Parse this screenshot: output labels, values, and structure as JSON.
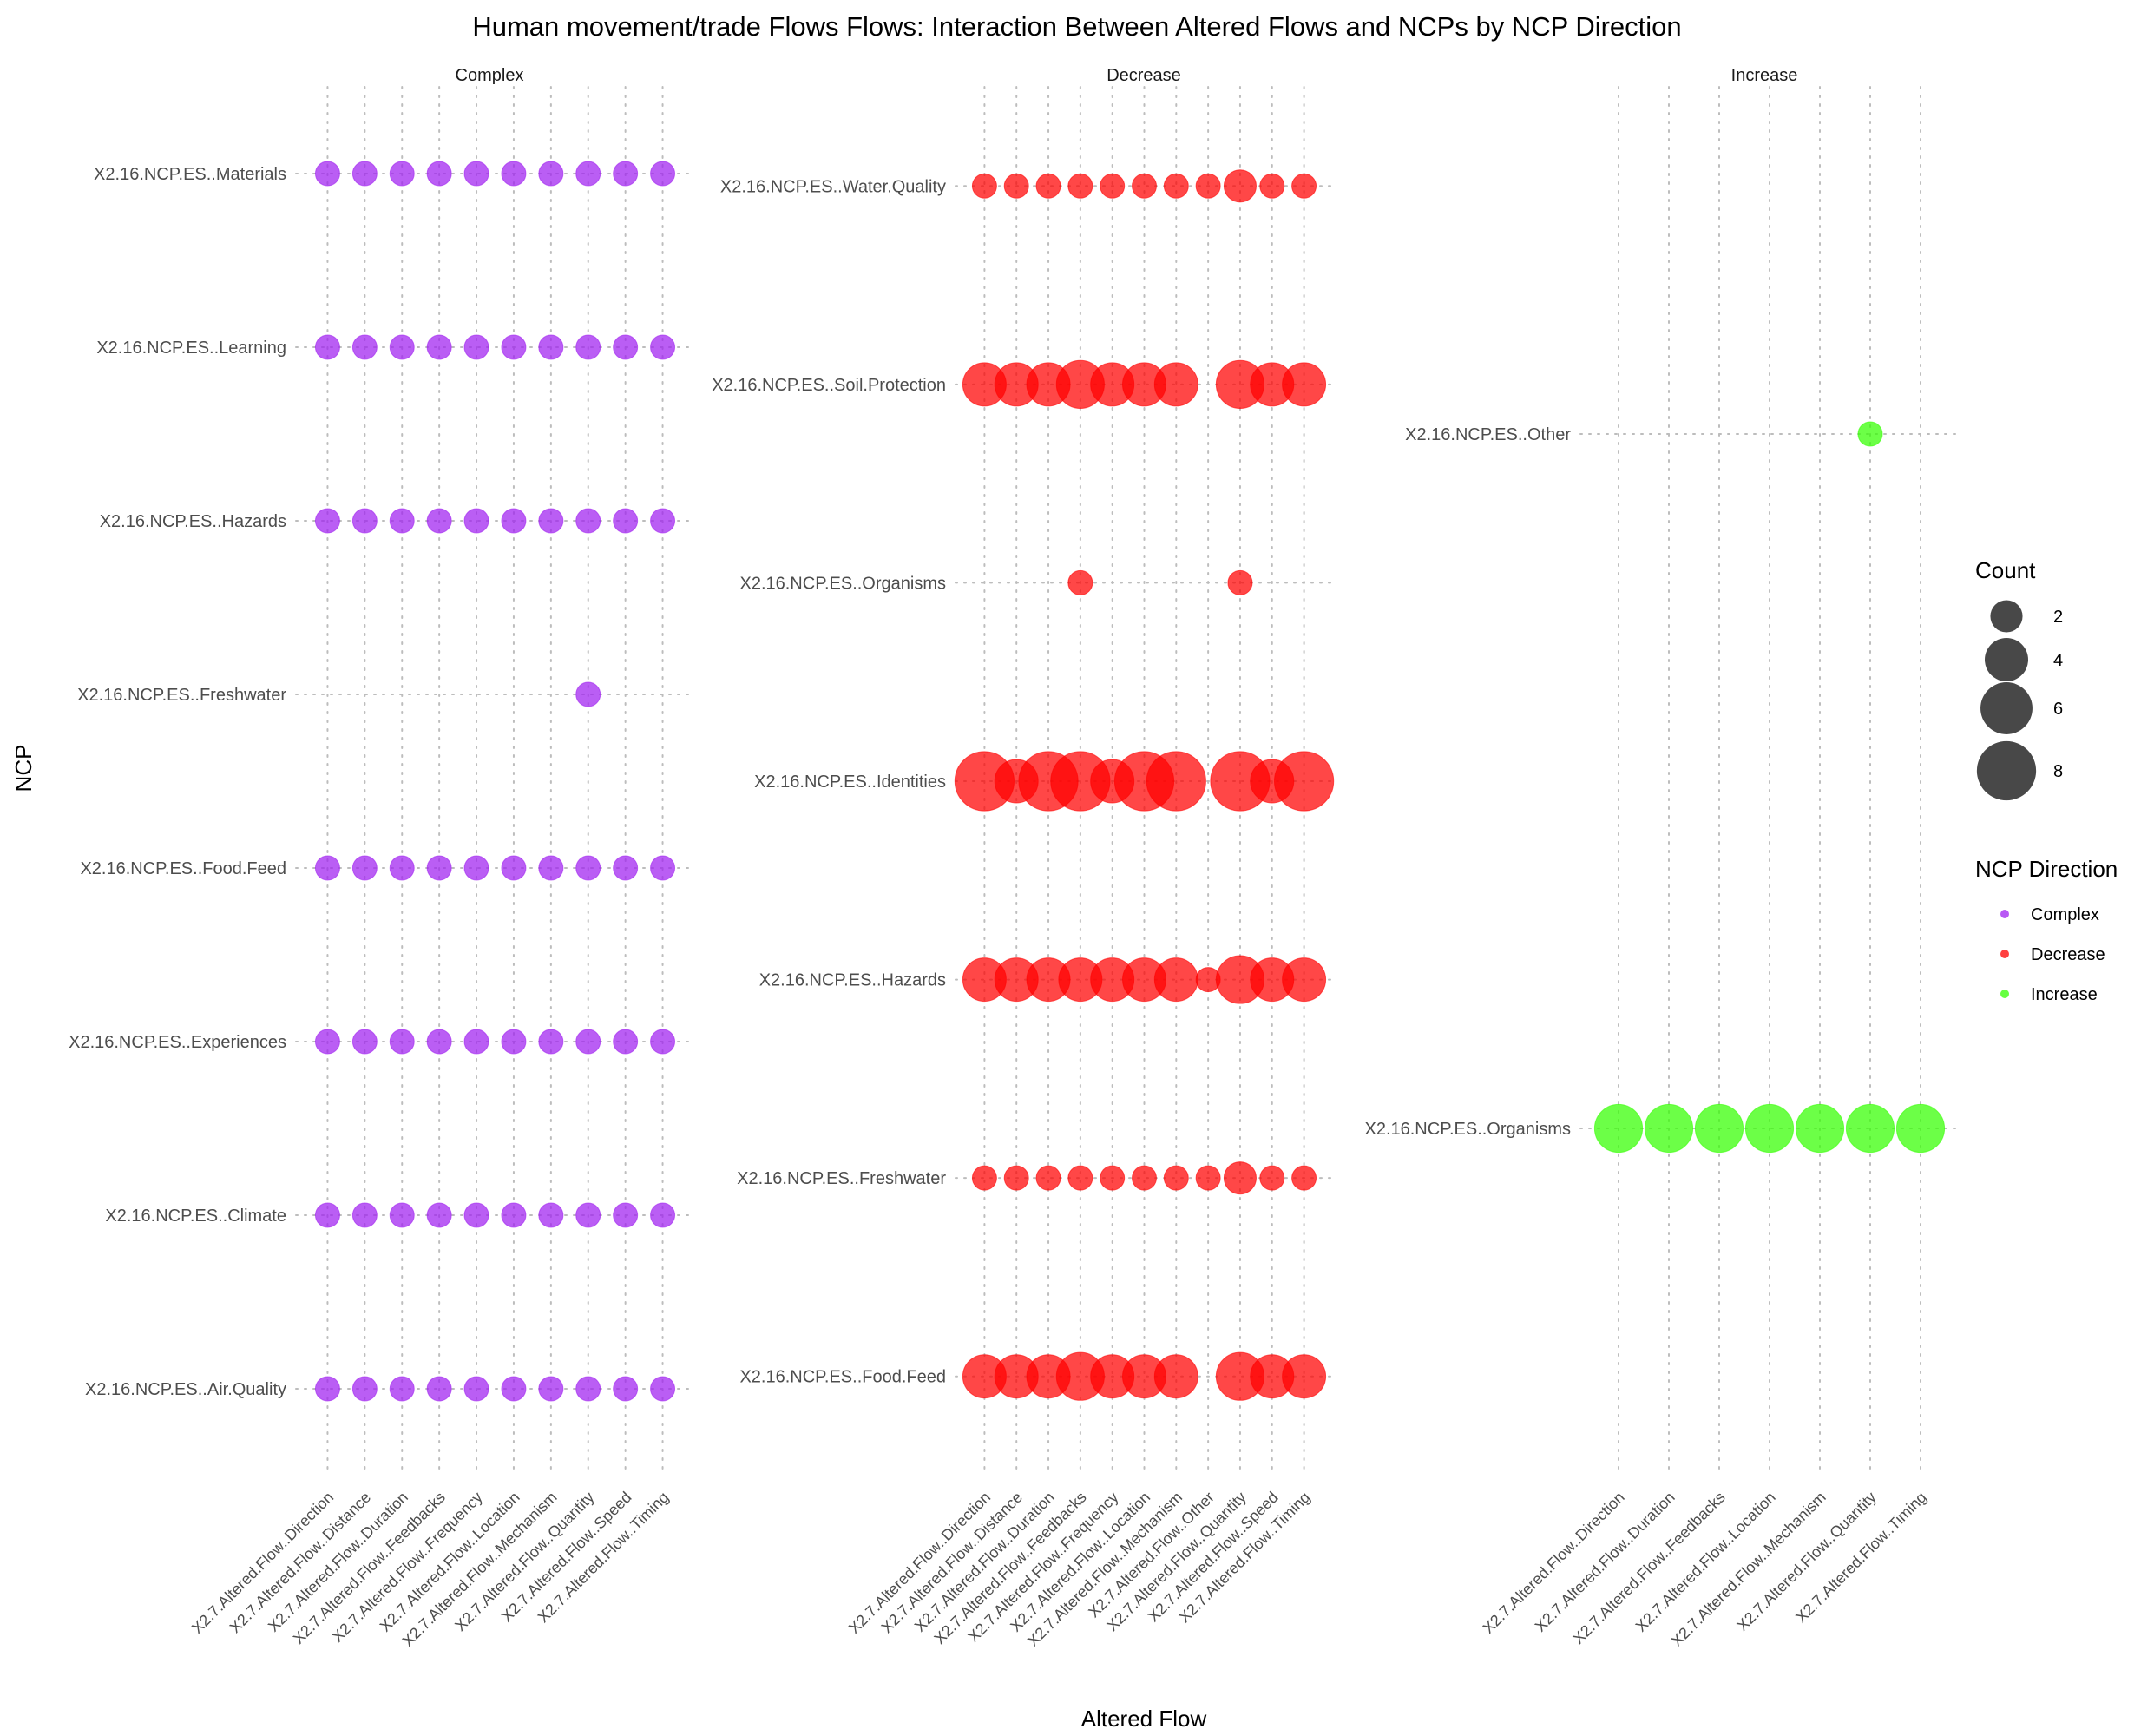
{
  "chart_data": {
    "type": "scatter",
    "title": "Human movement/trade Flows Flows: Interaction Between Altered Flows and NCPs by NCP Direction",
    "xlabel": "Altered Flow",
    "ylabel": "NCP",
    "grid": true,
    "legend_placement": "right",
    "size_legend": {
      "title": "Count",
      "values": [
        2,
        4,
        6,
        8
      ]
    },
    "color_legend": {
      "title": "NCP Direction",
      "entries": [
        {
          "label": "Complex",
          "color": "#A020F0"
        },
        {
          "label": "Decrease",
          "color": "#FF0000"
        },
        {
          "label": "Increase",
          "color": "#33FF00"
        }
      ]
    },
    "panels": [
      {
        "name": "Complex",
        "color": "#A020F0",
        "x_categories": [
          "X2.7.Altered.Flow..Direction",
          "X2.7.Altered.Flow..Distance",
          "X2.7.Altered.Flow..Duration",
          "X2.7.Altered.Flow..Feedbacks",
          "X2.7.Altered.Flow..Frequency",
          "X2.7.Altered.Flow..Location",
          "X2.7.Altered.Flow..Mechanism",
          "X2.7.Altered.Flow..Quantity",
          "X2.7.Altered.Flow..Speed",
          "X2.7.Altered.Flow..Timing"
        ],
        "y_categories": [
          "X2.16.NCP.ES..Materials",
          "X2.16.NCP.ES..Learning",
          "X2.16.NCP.ES..Hazards",
          "X2.16.NCP.ES..Freshwater",
          "X2.16.NCP.ES..Food.Feed",
          "X2.16.NCP.ES..Experiences",
          "X2.16.NCP.ES..Climate",
          "X2.16.NCP.ES..Air.Quality"
        ],
        "counts": [
          [
            1,
            1,
            1,
            1,
            1,
            1,
            1,
            1,
            1,
            1
          ],
          [
            1,
            1,
            1,
            1,
            1,
            1,
            1,
            1,
            1,
            1
          ],
          [
            1,
            1,
            1,
            1,
            1,
            1,
            1,
            1,
            1,
            1
          ],
          [
            0,
            0,
            0,
            0,
            0,
            0,
            0,
            1,
            0,
            0
          ],
          [
            1,
            1,
            1,
            1,
            1,
            1,
            1,
            1,
            1,
            1
          ],
          [
            1,
            1,
            1,
            1,
            1,
            1,
            1,
            1,
            1,
            1
          ],
          [
            1,
            1,
            1,
            1,
            1,
            1,
            1,
            1,
            1,
            1
          ],
          [
            1,
            1,
            1,
            1,
            1,
            1,
            1,
            1,
            1,
            1
          ]
        ]
      },
      {
        "name": "Decrease",
        "color": "#FF0000",
        "x_categories": [
          "X2.7.Altered.Flow..Direction",
          "X2.7.Altered.Flow..Distance",
          "X2.7.Altered.Flow..Duration",
          "X2.7.Altered.Flow..Feedbacks",
          "X2.7.Altered.Flow..Frequency",
          "X2.7.Altered.Flow..Location",
          "X2.7.Altered.Flow..Mechanism",
          "X2.7.Altered.Flow..Other",
          "X2.7.Altered.Flow..Quantity",
          "X2.7.Altered.Flow..Speed",
          "X2.7.Altered.Flow..Timing"
        ],
        "y_categories": [
          "X2.16.NCP.ES..Water.Quality",
          "X2.16.NCP.ES..Soil.Protection",
          "X2.16.NCP.ES..Organisms",
          "X2.16.NCP.ES..Identities",
          "X2.16.NCP.ES..Hazards",
          "X2.16.NCP.ES..Freshwater",
          "X2.16.NCP.ES..Food.Feed"
        ],
        "counts": [
          [
            1,
            1,
            1,
            1,
            1,
            1,
            1,
            1,
            2,
            1,
            1
          ],
          [
            4,
            4,
            4,
            5,
            4,
            4,
            4,
            0,
            5,
            4,
            4
          ],
          [
            0,
            0,
            0,
            1,
            0,
            0,
            0,
            0,
            1,
            0,
            0
          ],
          [
            8,
            4,
            8,
            8,
            4,
            8,
            8,
            0,
            8,
            4,
            8
          ],
          [
            4,
            4,
            4,
            4,
            4,
            4,
            4,
            1,
            5,
            4,
            4
          ],
          [
            1,
            1,
            1,
            1,
            1,
            1,
            1,
            1,
            2,
            1,
            1
          ],
          [
            4,
            4,
            4,
            5,
            4,
            4,
            4,
            0,
            5,
            4,
            4
          ]
        ]
      },
      {
        "name": "Increase",
        "color": "#33FF00",
        "x_categories": [
          "X2.7.Altered.Flow..Direction",
          "X2.7.Altered.Flow..Duration",
          "X2.7.Altered.Flow..Feedbacks",
          "X2.7.Altered.Flow..Location",
          "X2.7.Altered.Flow..Mechanism",
          "X2.7.Altered.Flow..Quantity",
          "X2.7.Altered.Flow..Timing"
        ],
        "y_categories": [
          "X2.16.NCP.ES..Other",
          "X2.16.NCP.ES..Organisms"
        ],
        "counts": [
          [
            0,
            0,
            0,
            0,
            0,
            1,
            0
          ],
          [
            5,
            5,
            5,
            5,
            5,
            5,
            5
          ]
        ]
      }
    ]
  }
}
